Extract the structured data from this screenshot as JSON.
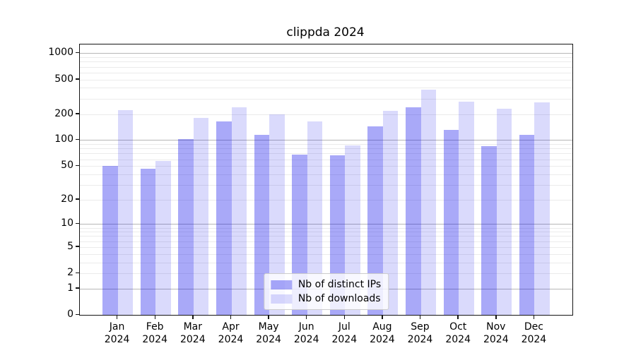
{
  "chart_data": {
    "type": "bar",
    "title": "clippda 2024",
    "categories": [
      "Jan",
      "Feb",
      "Mar",
      "Apr",
      "May",
      "Jun",
      "Jul",
      "Aug",
      "Sep",
      "Oct",
      "Nov",
      "Dec"
    ],
    "category_year": "2024",
    "series": [
      {
        "name": "Nb of distinct IPs",
        "color": "#0202ea",
        "alpha": 0.34,
        "values": [
          50,
          46,
          102,
          164,
          115,
          68,
          66,
          145,
          238,
          131,
          85,
          116
        ]
      },
      {
        "name": "Nb of downloads",
        "color": "#0202ea",
        "alpha": 0.145,
        "values": [
          220,
          57,
          182,
          240,
          200,
          163,
          86,
          217,
          385,
          280,
          230,
          275
        ]
      }
    ],
    "xlabel": "",
    "ylabel": "",
    "yscale": "log1p",
    "yticks": [
      0,
      1,
      2,
      5,
      10,
      20,
      50,
      100,
      200,
      500,
      1000
    ],
    "ylim": [
      0,
      1259
    ],
    "grid": {
      "major_values": [
        1,
        10,
        100,
        1000
      ],
      "minor_values": [
        2,
        3,
        4,
        5,
        6,
        7,
        8,
        9,
        20,
        30,
        40,
        50,
        60,
        70,
        80,
        90,
        200,
        300,
        400,
        500,
        600,
        700,
        800,
        900
      ],
      "major_color": "#b6b6b6",
      "minor_color": "#ebebeb"
    },
    "legend": {
      "position": "lower center",
      "entries": [
        "Nb of distinct IPs",
        "Nb of downloads"
      ]
    },
    "colors": {
      "background": "#ffffff",
      "spine": "#151515",
      "text": "#000000",
      "bar_ips_rendered": "#a8a8f8",
      "bar_downloads_rendered": "#d8d8f8"
    }
  }
}
